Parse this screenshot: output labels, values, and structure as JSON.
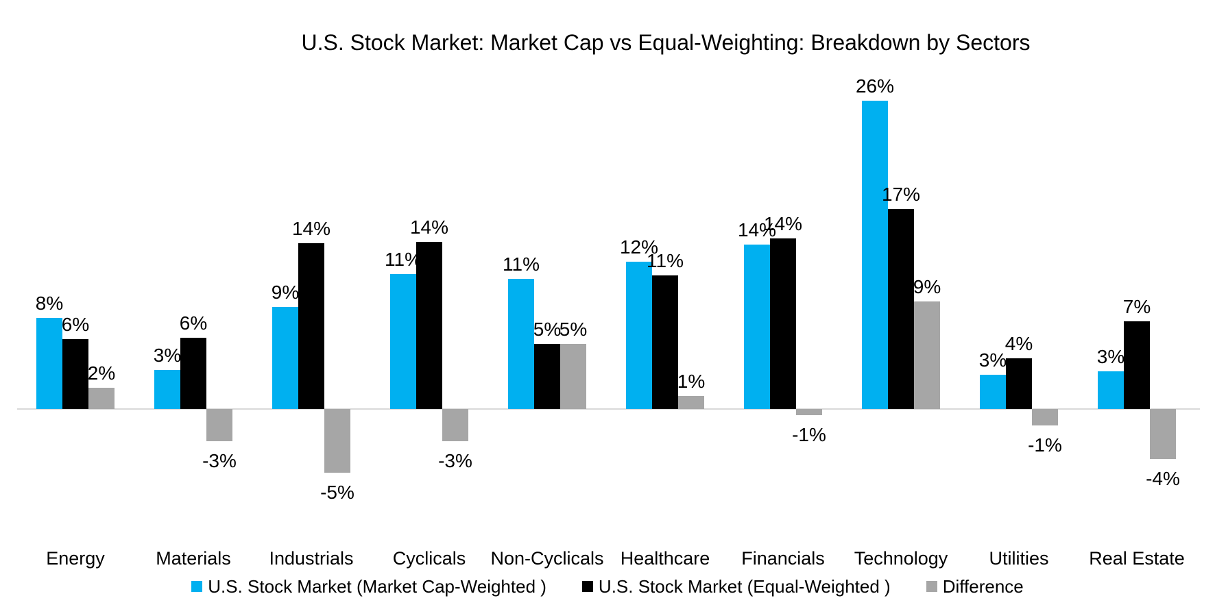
{
  "chart_data": {
    "type": "bar",
    "title": "U.S. Stock Market: Market Cap vs Equal-Weighting: Breakdown by Sectors",
    "categories": [
      "Energy",
      "Materials",
      "Industrials",
      "Cyclicals",
      "Non-Cyclicals",
      "Healthcare",
      "Financials",
      "Technology",
      "Utilities",
      "Real Estate"
    ],
    "series": [
      {
        "name": "U.S. Stock Market (Market Cap-Weighted )",
        "color": "#00B0F0",
        "labels": [
          "8%",
          "3%",
          "9%",
          "11%",
          "11%",
          "12%",
          "14%",
          "26%",
          "3%",
          "3%"
        ],
        "values": [
          7.7,
          3.3,
          8.6,
          11.4,
          11.0,
          12.4,
          13.9,
          26.0,
          2.9,
          3.2
        ]
      },
      {
        "name": "U.S. Stock Market (Equal-Weighted )",
        "color": "#000000",
        "labels": [
          "6%",
          "6%",
          "14%",
          "14%",
          "5%",
          "11%",
          "14%",
          "17%",
          "4%",
          "7%"
        ],
        "values": [
          5.9,
          6.0,
          14.0,
          14.1,
          5.5,
          11.3,
          14.4,
          16.9,
          4.3,
          7.4
        ]
      },
      {
        "name": "Difference",
        "color": "#A6A6A6",
        "labels": [
          "2%",
          "-3%",
          "-5%",
          "-3%",
          "5%",
          "1%",
          "-1%",
          "9%",
          "-1%",
          "-4%"
        ],
        "values": [
          1.8,
          -2.7,
          -5.4,
          -2.7,
          5.5,
          1.1,
          -0.5,
          9.1,
          -1.4,
          -4.2
        ]
      }
    ],
    "value_format": "percent",
    "data_labels": true,
    "grid": false,
    "y_axis_visible": false,
    "ylim": [
      -6,
      27
    ],
    "legend_position": "bottom",
    "axis_line_color": "#D9D9D9",
    "background": "#FFFFFF"
  }
}
